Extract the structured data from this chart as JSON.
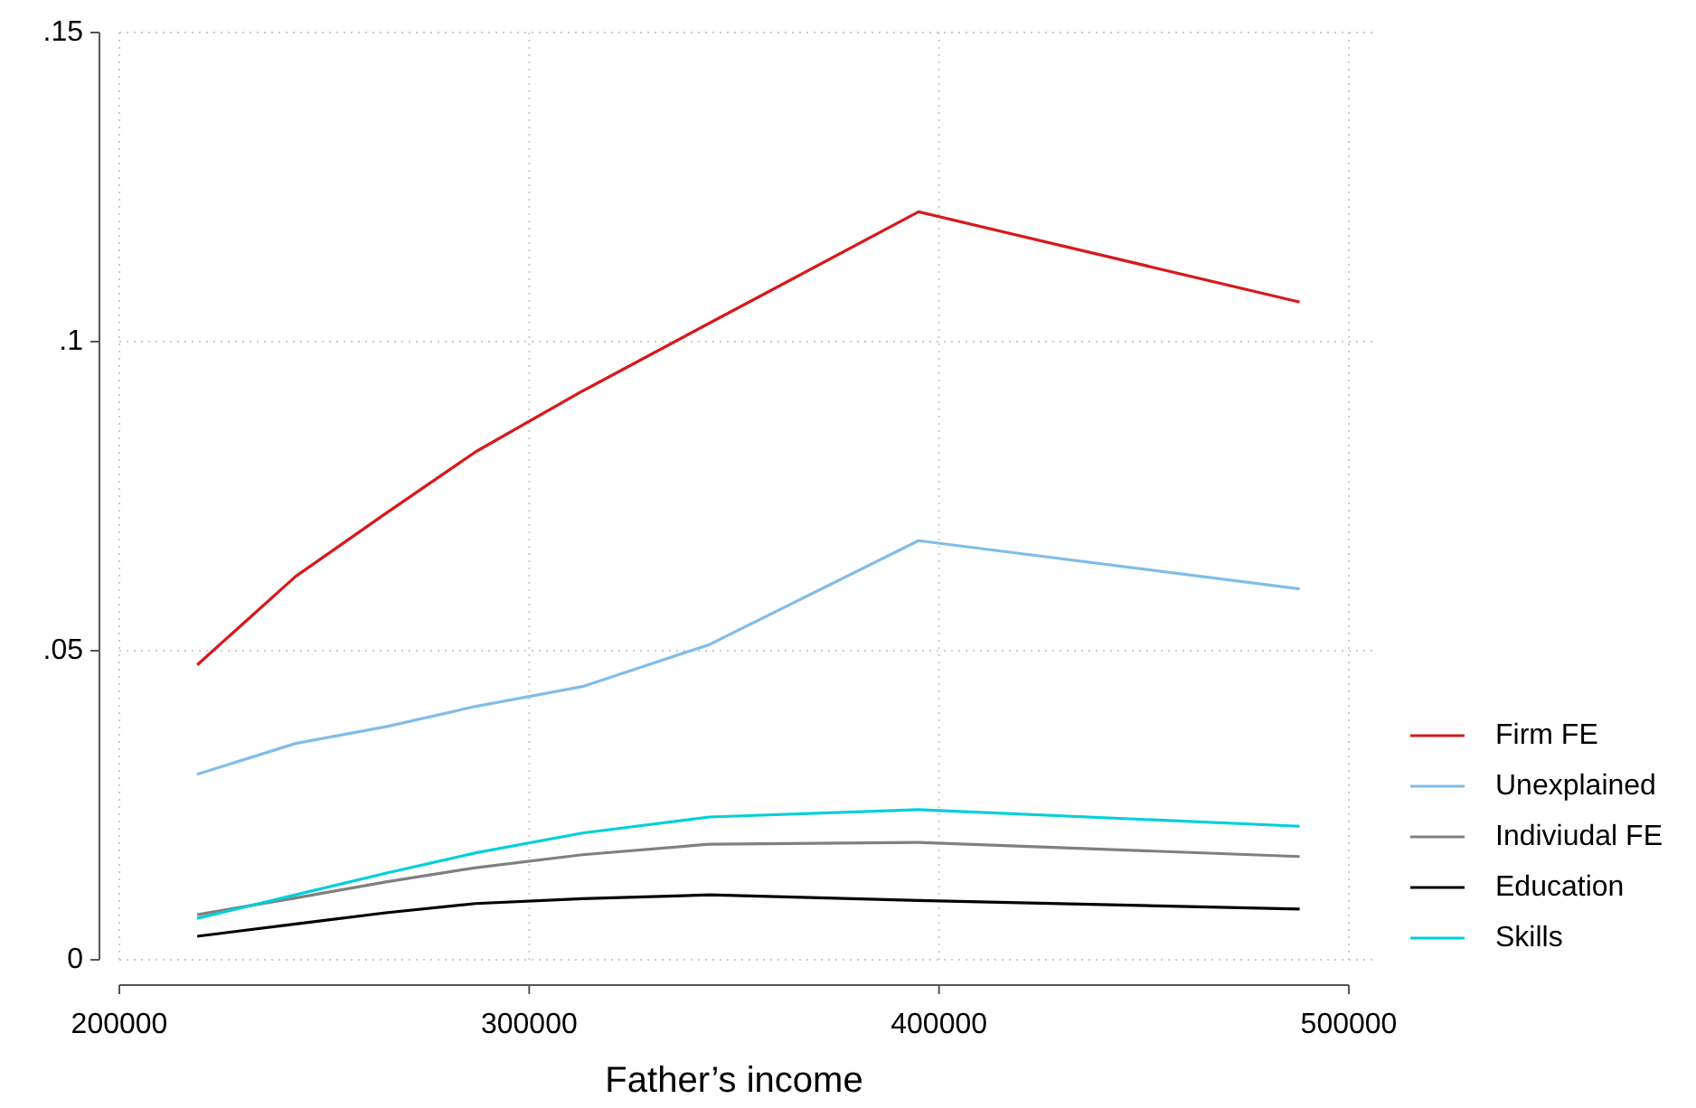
{
  "chart_data": {
    "type": "line",
    "xlabel": "Father’s income",
    "x": [
      219000,
      243000,
      265000,
      287000,
      313000,
      344000,
      395000,
      488000
    ],
    "xlim": [
      200000,
      500000
    ],
    "xticks": [
      200000,
      300000,
      400000,
      500000
    ],
    "ylim": [
      0,
      0.15
    ],
    "yticks": [
      {
        "value": 0,
        "label": "0"
      },
      {
        "value": 0.05,
        "label": ".05"
      },
      {
        "value": 0.1,
        "label": ".1"
      },
      {
        "value": 0.15,
        "label": ".15"
      }
    ],
    "grid": true,
    "legend": "right",
    "line_style": "solid",
    "marker": "none",
    "series": [
      {
        "name": "Firm FE",
        "color": "#d7191c",
        "values": [
          0.0477,
          0.062,
          0.0722,
          0.0822,
          0.092,
          0.103,
          0.121,
          0.1064
        ]
      },
      {
        "name": "Unexplained",
        "color": "#80bde8",
        "values": [
          0.03,
          0.035,
          0.0377,
          0.041,
          0.0442,
          0.051,
          0.0678,
          0.06
        ]
      },
      {
        "name": "Indiviudal FE",
        "color": "#808080",
        "values": [
          0.0073,
          0.01,
          0.0126,
          0.0149,
          0.017,
          0.0187,
          0.019,
          0.0167
        ]
      },
      {
        "name": "Education",
        "color": "#000000",
        "values": [
          0.0038,
          0.0058,
          0.0076,
          0.0091,
          0.0099,
          0.0105,
          0.0096,
          0.0082
        ]
      },
      {
        "name": "Skills",
        "color": "#00d0d8",
        "values": [
          0.0067,
          0.0105,
          0.014,
          0.0173,
          0.0205,
          0.0231,
          0.0243,
          0.0216
        ]
      }
    ]
  }
}
